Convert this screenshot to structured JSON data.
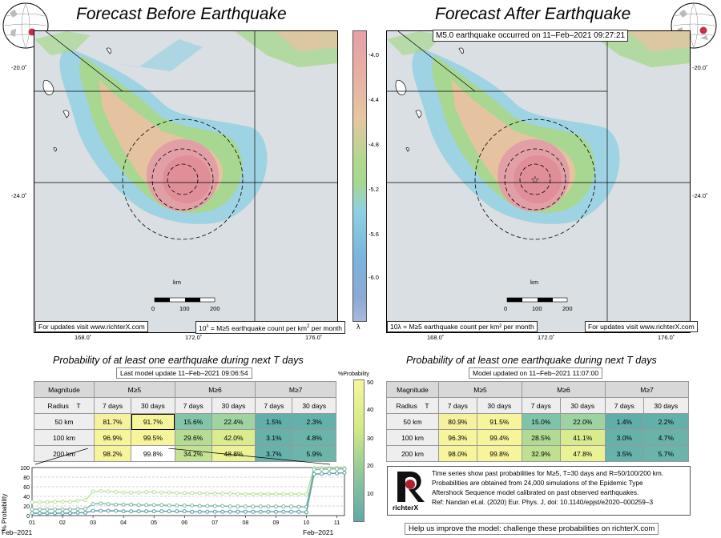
{
  "left": {
    "title": "Forecast Before Earthquake",
    "update_note": "For updates visit www.richterX.com",
    "units_note_pre": "10",
    "units_note_sup": "λ",
    "units_note_post": " = M≥5 earthquake count per km",
    "units_note_sup2": "2",
    "units_note_post2": " per month",
    "scale_unit": "km",
    "scale_ticks": [
      "0",
      "100",
      "200"
    ],
    "lat_ticks": [
      "-20.0˚",
      "-24.0˚"
    ],
    "lon_ticks": [
      "168.0˚",
      "172.0˚",
      "176.0˚"
    ]
  },
  "right": {
    "title": "Forecast After Earthquake",
    "event_note": "M5.0 earthquake occurred on 11–Feb–2021 09:27:21",
    "update_note": "For updates visit www.richterX.com",
    "units_note": "10λ = M≥5 earthquake count per km² per month",
    "scale_unit": "km",
    "scale_ticks": [
      "0",
      "100",
      "200"
    ],
    "lat_ticks": [
      "-20.0˚",
      "-24.0˚"
    ],
    "lon_ticks": [
      "168.0˚",
      "172.0˚",
      "176.0˚"
    ]
  },
  "colorbar": {
    "ticks": [
      "-4.0",
      "-4.4",
      "-4.8",
      "-5.2",
      "-5.6",
      "-6.0"
    ],
    "label": "λ"
  },
  "prob_left": {
    "title": "Probability of at least one earthquake during next T days",
    "update": "Last model update 11–Feb–2021 09:06:54",
    "header": [
      "Magnitude",
      "M≥5",
      "M≥6",
      "M≥7"
    ],
    "sub_header": [
      "Radius",
      "T",
      "7 days",
      "30 days",
      "7 days",
      "30 days",
      "7 days",
      "30 days"
    ],
    "rows": [
      {
        "radius": "50 km",
        "cells": [
          "81.7%",
          "91.7%",
          "15.6%",
          "22.4%",
          "1.5%",
          "2.3%"
        ]
      },
      {
        "radius": "100 km",
        "cells": [
          "96.9%",
          "99.5%",
          "29.6%",
          "42.0%",
          "3.1%",
          "4.8%"
        ]
      },
      {
        "radius": "200 km",
        "cells": [
          "98.2%",
          "99.8%",
          "34.2%",
          "48.8%",
          "3.7%",
          "5.9%"
        ]
      }
    ]
  },
  "prob_right": {
    "title": "Probability of at least one earthquake during next T days",
    "update": "Model updated on 11–Feb–2021 11:07:00",
    "header": [
      "Magnitude",
      "M≥5",
      "M≥6",
      "M≥7"
    ],
    "sub_header": [
      "Radius",
      "T",
      "7 days",
      "30 days",
      "7 days",
      "30 days",
      "7 days",
      "30 days"
    ],
    "rows": [
      {
        "radius": "50 km",
        "cells": [
          "80.9%",
          "91.5%",
          "15.0%",
          "22.0%",
          "1.4%",
          "2.2%"
        ]
      },
      {
        "radius": "100 km",
        "cells": [
          "96.3%",
          "99.4%",
          "28.5%",
          "41.1%",
          "3.0%",
          "4.7%"
        ]
      },
      {
        "radius": "200 km",
        "cells": [
          "98.0%",
          "99.8%",
          "32.9%",
          "47.8%",
          "3.5%",
          "5.7%"
        ]
      }
    ]
  },
  "prob_colorbar": {
    "label": "%Probability",
    "ticks": [
      "50",
      "40",
      "30",
      "20",
      "10"
    ]
  },
  "chart_data": {
    "type": "line",
    "ylabel": "% Probability",
    "ylim": [
      0,
      100
    ],
    "y_ticks": [
      "100",
      "80",
      "60",
      "40",
      "20",
      "0"
    ],
    "x_ticks": [
      "01",
      "02",
      "03",
      "04",
      "05",
      "06",
      "07",
      "08",
      "09",
      "10",
      "11"
    ],
    "x_start_label": "Feb–2021",
    "x_end_label": "Feb–2021",
    "x_days": [
      1.0,
      1.25,
      1.5,
      1.75,
      2.0,
      2.25,
      2.5,
      2.75,
      3.0,
      3.25,
      3.5,
      3.75,
      4.0,
      4.25,
      4.5,
      4.75,
      5.0,
      5.25,
      5.5,
      5.75,
      6.0,
      6.25,
      6.5,
      6.75,
      7.0,
      7.25,
      7.5,
      7.75,
      8.0,
      8.25,
      8.5,
      8.75,
      9.0,
      9.25,
      9.5,
      9.75,
      10.0,
      10.25,
      10.5,
      10.75,
      11.0,
      11.25
    ],
    "series": [
      {
        "color": "#b9e39a",
        "values": [
          28,
          28,
          28,
          29,
          29,
          29,
          31,
          32,
          50,
          51,
          50,
          49,
          48,
          48,
          48,
          49,
          49,
          48,
          48,
          47,
          47,
          47,
          47,
          46,
          46,
          46,
          46,
          45,
          45,
          45,
          45,
          45,
          45,
          45,
          45,
          45,
          44,
          99,
          99,
          99,
          99,
          99
        ]
      },
      {
        "color": "#7fb9a3",
        "values": [
          13,
          13,
          13,
          13,
          13,
          13,
          14,
          14,
          24,
          25,
          24,
          23,
          23,
          23,
          22,
          22,
          22,
          22,
          21,
          21,
          21,
          21,
          20,
          20,
          20,
          20,
          19,
          19,
          19,
          19,
          19,
          19,
          19,
          19,
          19,
          18,
          18,
          96,
          96,
          97,
          97,
          97
        ]
      },
      {
        "color": "#5a9ea6",
        "values": [
          5,
          5,
          5,
          5,
          5,
          5,
          6,
          6,
          10,
          10,
          10,
          10,
          9,
          9,
          9,
          9,
          9,
          9,
          9,
          9,
          9,
          8,
          8,
          8,
          8,
          8,
          8,
          8,
          8,
          8,
          8,
          8,
          8,
          8,
          8,
          8,
          7,
          86,
          87,
          88,
          88,
          89
        ]
      }
    ]
  },
  "info": {
    "logo_text": "richterX",
    "lines": [
      "Time series show past probabilities for M≥5, T=30 days and R=50/100/200 km.",
      "Probabilities are obtained from 24,000 simulations of the Epidemic Type",
      "Aftershock Sequence model calibrated on past observed earthquakes.",
      "Ref: Nandan et.al. (2020) Eur. Phys. J, doi: 10.1140/epjst/e2020–000259–3"
    ]
  },
  "help": "Help us improve the model: challenge these probabilities on richterX.com",
  "colors": {
    "high": "#e7a0a4",
    "mid_warm": "#e8bfa0",
    "mid": "#a9d690",
    "low": "#8ec8df",
    "background": "#d9dfe2"
  }
}
